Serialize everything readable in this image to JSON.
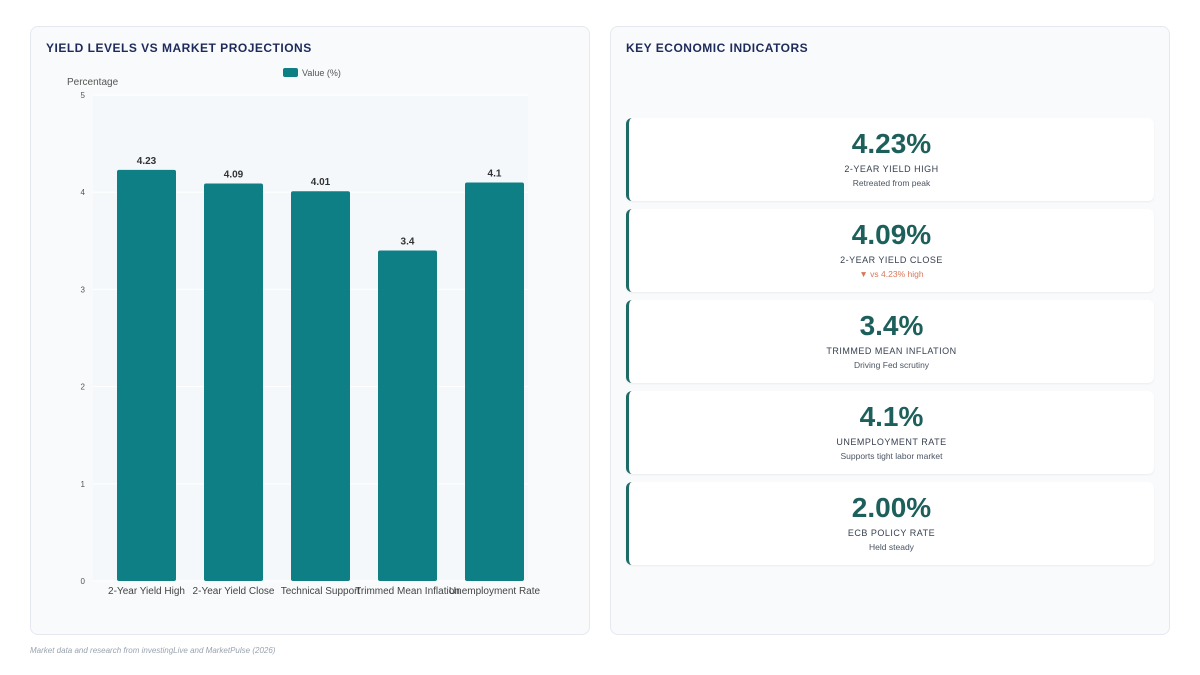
{
  "chart_panel": {
    "title": "YIELD LEVELS VS MARKET PROJECTIONS"
  },
  "chart_data": {
    "type": "bar",
    "categories": [
      "2-Year Yield High",
      "2-Year Yield Close",
      "Technical Support",
      "Trimmed Mean Inflation",
      "Unemployment Rate"
    ],
    "series": [
      {
        "name": "Value (%)",
        "values": [
          4.23,
          4.09,
          4.01,
          3.4,
          4.1
        ],
        "color": "#0f7f86"
      }
    ],
    "data_labels": [
      "4.23",
      "4.09",
      "4.01",
      "3.4",
      "4.1"
    ],
    "ylabel": "Percentage",
    "xlabel": "",
    "ylim": [
      0,
      5
    ],
    "yticks": [
      "0",
      "1",
      "2",
      "3",
      "4",
      "5"
    ],
    "legend_position": "top-center",
    "grid": true
  },
  "indicators_panel": {
    "title": "KEY ECONOMIC INDICATORS",
    "cards": [
      {
        "value": "4.23%",
        "label": "2-YEAR YIELD HIGH",
        "note": "Retreated from peak"
      },
      {
        "value": "4.09%",
        "label": "2-YEAR YIELD CLOSE",
        "note": "▼ vs 4.23% high"
      },
      {
        "value": "3.4%",
        "label": "TRIMMED MEAN INFLATION",
        "note": "Driving Fed scrutiny"
      },
      {
        "value": "4.1%",
        "label": "UNEMPLOYMENT RATE",
        "note": "Supports tight labor market"
      },
      {
        "value": "2.00%",
        "label": "ECB POLICY RATE",
        "note": "Held steady"
      }
    ]
  },
  "footer": {
    "source": "Market data and research from investingLive and MarketPulse (2026)"
  },
  "colors": {
    "bar": "#0f7f86",
    "accent": "#1d5f5a",
    "title": "#1e2a5a",
    "negative_note": "#d9775a"
  }
}
